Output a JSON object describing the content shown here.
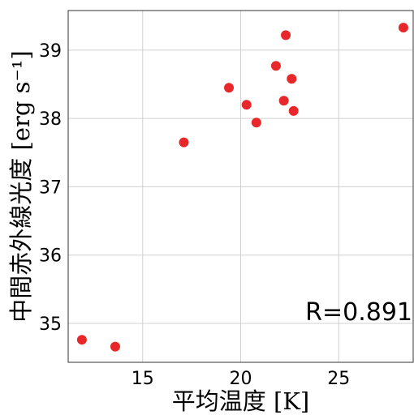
{
  "chart_data": {
    "type": "scatter",
    "xlabel": "平均温度 [K]",
    "ylabel": "中間赤外線光度 [erg s⁻¹]",
    "annotation": "R=0.891",
    "xlim": [
      11.2,
      28.8
    ],
    "ylim": [
      34.43,
      39.58
    ],
    "xticks": [
      15,
      20,
      25
    ],
    "yticks": [
      35,
      36,
      37,
      38,
      39
    ],
    "grid": true,
    "marker_color": "#e8272a",
    "points": [
      {
        "x": 11.9,
        "y": 34.76
      },
      {
        "x": 13.6,
        "y": 34.66
      },
      {
        "x": 17.1,
        "y": 37.65
      },
      {
        "x": 19.4,
        "y": 38.45
      },
      {
        "x": 20.3,
        "y": 38.2
      },
      {
        "x": 20.8,
        "y": 37.94
      },
      {
        "x": 21.8,
        "y": 38.77
      },
      {
        "x": 22.2,
        "y": 38.26
      },
      {
        "x": 22.3,
        "y": 39.22
      },
      {
        "x": 22.6,
        "y": 38.58
      },
      {
        "x": 22.7,
        "y": 38.11
      },
      {
        "x": 28.3,
        "y": 39.33
      }
    ]
  }
}
